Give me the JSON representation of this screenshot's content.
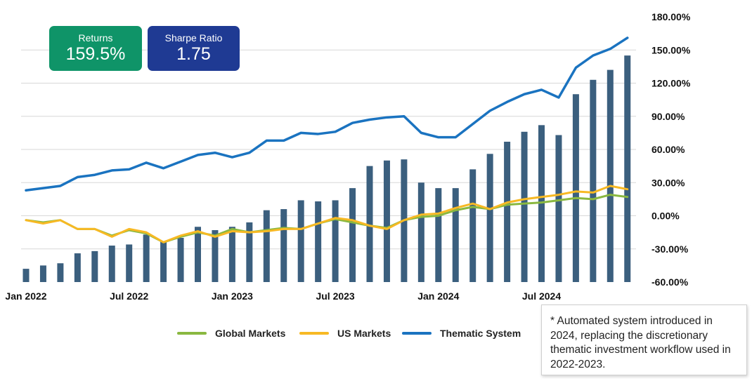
{
  "stats": {
    "returns": {
      "label": "Returns",
      "value": "159.5%"
    },
    "sharpe": {
      "label": "Sharpe Ratio",
      "value": "1.75"
    }
  },
  "note": "* Automated system introduced in 2024, replacing the discretionary thematic investment workflow used in 2022-2023.",
  "colors": {
    "bars": "#3b5f7e",
    "global": "#8ab840",
    "us": "#f7b924",
    "thematic": "#1a73c0",
    "grid": "#d7d7d7",
    "returns_card": "#0f9468",
    "sharpe_card": "#1f3a93"
  },
  "chart_data": {
    "type": "bar+line",
    "x": [
      "Jan 2022",
      "Feb 2022",
      "Mar 2022",
      "Apr 2022",
      "May 2022",
      "Jun 2022",
      "Jul 2022",
      "Aug 2022",
      "Sep 2022",
      "Oct 2022",
      "Nov 2022",
      "Dec 2022",
      "Jan 2023",
      "Feb 2023",
      "Mar 2023",
      "Apr 2023",
      "May 2023",
      "Jun 2023",
      "Jul 2023",
      "Aug 2023",
      "Sep 2023",
      "Oct 2023",
      "Nov 2023",
      "Dec 2023",
      "Jan 2024",
      "Feb 2024",
      "Mar 2024",
      "Apr 2024",
      "May 2024",
      "Jun 2024",
      "Jul 2024",
      "Aug 2024",
      "Sep 2024",
      "Oct 2024",
      "Nov 2024",
      "Dec 2024"
    ],
    "x_tick_labels": [
      {
        "index": 0,
        "label": "Jan 2022"
      },
      {
        "index": 6,
        "label": "Jul 2022"
      },
      {
        "index": 12,
        "label": "Jan 2023"
      },
      {
        "index": 18,
        "label": "Jul 2023"
      },
      {
        "index": 24,
        "label": "Jan 2024"
      },
      {
        "index": 30,
        "label": "Jul 2024"
      }
    ],
    "y_ticks": [
      180,
      150,
      120,
      90,
      60,
      30,
      0,
      -30,
      -60
    ],
    "y_tick_labels": [
      "180.00%",
      "150.00%",
      "120.00%",
      "90.00%",
      "60.00%",
      "30.00%",
      "0.00%",
      "-30.00%",
      "-60.00%"
    ],
    "ylim": [
      -60,
      180
    ],
    "bars": [
      -48,
      -45,
      -43,
      -34,
      -32,
      -27,
      -26,
      -17,
      -23,
      -20,
      -10,
      -13,
      -10,
      -6,
      5,
      6,
      14,
      13,
      14,
      25,
      45,
      50,
      51,
      30,
      25,
      25,
      42,
      56,
      67,
      76,
      82,
      73,
      110,
      123,
      132,
      145
    ],
    "series": [
      {
        "name": "Global Markets",
        "values": [
          -4,
          -6,
          -4,
          -12,
          -12,
          -18,
          -13,
          -16,
          -24,
          -19,
          -15,
          -18,
          -12,
          -15,
          -13,
          -11,
          -12,
          -7,
          -3,
          -6,
          -9,
          -11,
          -4,
          -1,
          0,
          5,
          8,
          6,
          10,
          11,
          12,
          14,
          16,
          15,
          19,
          17
        ]
      },
      {
        "name": "US Markets",
        "values": [
          -4,
          -7,
          -4,
          -12,
          -12,
          -19,
          -12,
          -15,
          -24,
          -18,
          -14,
          -19,
          -14,
          -15,
          -14,
          -12,
          -12,
          -7,
          -2,
          -4,
          -9,
          -12,
          -4,
          1,
          2,
          7,
          11,
          6,
          12,
          15,
          17,
          19,
          22,
          21,
          27,
          24
        ]
      },
      {
        "name": "Thematic System",
        "values": [
          23,
          25,
          27,
          35,
          37,
          41,
          42,
          48,
          43,
          49,
          55,
          57,
          53,
          57,
          68,
          68,
          75,
          74,
          76,
          84,
          87,
          89,
          90,
          75,
          71,
          71,
          83,
          95,
          103,
          110,
          114,
          107,
          134,
          145,
          151,
          161
        ]
      }
    ],
    "legend_position": "bottom",
    "grid": true
  },
  "legend": [
    {
      "name": "Global Markets"
    },
    {
      "name": "US Markets"
    },
    {
      "name": "Thematic System"
    }
  ]
}
